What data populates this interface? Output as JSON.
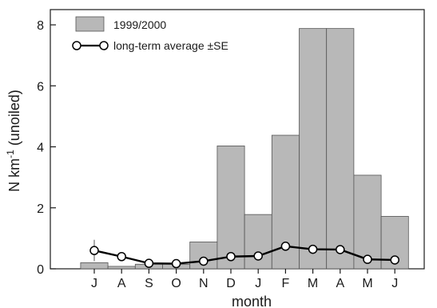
{
  "chart_data": {
    "type": "bar",
    "categories": [
      "J",
      "A",
      "S",
      "O",
      "N",
      "D",
      "J",
      "F",
      "M",
      "A",
      "M",
      "J"
    ],
    "series": [
      {
        "name": "1999/2000",
        "type": "bar",
        "values": [
          0.2,
          0.08,
          0.15,
          0.15,
          0.88,
          4.03,
          1.78,
          4.38,
          7.88,
          7.88,
          3.07,
          1.72
        ],
        "color": "#b8b8b8"
      },
      {
        "name": "long-term average ±SE",
        "type": "line",
        "values": [
          0.6,
          0.4,
          0.18,
          0.17,
          0.25,
          0.4,
          0.42,
          0.74,
          0.64,
          0.63,
          0.31,
          0.29
        ],
        "se": [
          0.35,
          0.08,
          0.05,
          0.04,
          0.06,
          0.06,
          0.07,
          0.1,
          0.08,
          0.08,
          0.05,
          0.05
        ],
        "color": "#000000"
      }
    ],
    "xlabel": "month",
    "ylabel_main": "N km",
    "ylabel_superscript": "-1",
    "ylabel_suffix": " (unoiled)",
    "ylim": [
      0,
      8.5
    ],
    "yticks": [
      0,
      2,
      4,
      6,
      8
    ],
    "grid": false,
    "legend_position": "top-left"
  }
}
